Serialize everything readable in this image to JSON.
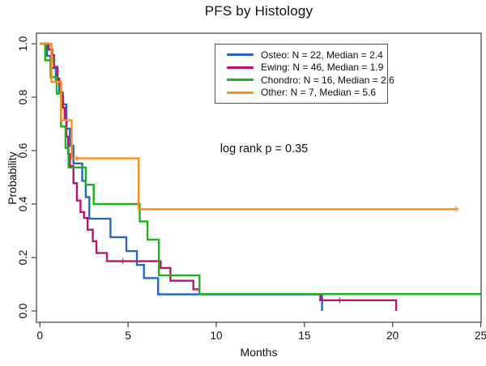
{
  "title": "PFS by Histology",
  "annotation": "log rank p = 0.35",
  "axes": {
    "x": {
      "label": "Months",
      "tick_labels": [
        "0",
        "5",
        "10",
        "15",
        "20",
        "25"
      ],
      "tick_values": [
        0,
        5,
        10,
        15,
        20,
        25
      ],
      "range": [
        0,
        25
      ]
    },
    "y": {
      "label": "Probability",
      "tick_labels": [
        "0.0",
        "0.2",
        "0.4",
        "0.6",
        "0.8",
        "1.0"
      ],
      "tick_values": [
        0,
        0.2,
        0.4,
        0.6,
        0.8,
        1.0
      ],
      "range": [
        0,
        1
      ]
    }
  },
  "legend": {
    "entries": [
      {
        "label": "Osteo: N = 22, Median = 2.4",
        "color": "#2569bf"
      },
      {
        "label": "Ewing: N = 46, Median = 1.9",
        "color": "#c1126b"
      },
      {
        "label": "Chondro: N = 16, Median = 2.6",
        "color": "#1ab51a"
      },
      {
        "label": "Other: N = 7, Median = 5.6",
        "color": "#ff8c1a"
      }
    ]
  },
  "chart_data": {
    "type": "line",
    "subtype": "kaplan-meier-step",
    "title": "PFS by Histology",
    "xlabel": "Months",
    "ylabel": "Probability",
    "xlim": [
      0,
      25
    ],
    "ylim": [
      0,
      1
    ],
    "grid": false,
    "legend_position": "top-right-inside",
    "annotation": "log rank p = 0.35",
    "series": [
      {
        "name": "Osteo",
        "n": 22,
        "median": 2.4,
        "color": "#2569bf",
        "points": [
          [
            0,
            1.0
          ],
          [
            0.4,
            0.955
          ],
          [
            0.6,
            0.909
          ],
          [
            0.9,
            0.864
          ],
          [
            1.1,
            0.818
          ],
          [
            1.3,
            0.773
          ],
          [
            1.5,
            0.682
          ],
          [
            1.7,
            0.618
          ],
          [
            1.9,
            0.552
          ],
          [
            2.4,
            0.487
          ],
          [
            2.6,
            0.426
          ],
          [
            2.8,
            0.345
          ],
          [
            4.0,
            0.276
          ],
          [
            4.9,
            0.224
          ],
          [
            5.5,
            0.172
          ],
          [
            5.9,
            0.123
          ],
          [
            6.7,
            0.062
          ],
          [
            16.0,
            0.0
          ]
        ],
        "end_x": null,
        "censors": []
      },
      {
        "name": "Ewing",
        "n": 46,
        "median": 1.9,
        "color": "#c1126b",
        "points": [
          [
            0,
            1.0
          ],
          [
            0.5,
            0.978
          ],
          [
            0.7,
            0.957
          ],
          [
            0.8,
            0.913
          ],
          [
            1.0,
            0.87
          ],
          [
            1.1,
            0.848
          ],
          [
            1.2,
            0.804
          ],
          [
            1.3,
            0.761
          ],
          [
            1.4,
            0.717
          ],
          [
            1.5,
            0.652
          ],
          [
            1.6,
            0.587
          ],
          [
            1.7,
            0.543
          ],
          [
            1.9,
            0.478
          ],
          [
            2.1,
            0.413
          ],
          [
            2.3,
            0.37
          ],
          [
            2.5,
            0.348
          ],
          [
            2.7,
            0.304
          ],
          [
            3.0,
            0.261
          ],
          [
            3.2,
            0.217
          ],
          [
            3.8,
            0.186
          ],
          [
            6.85,
            0.161
          ],
          [
            7.4,
            0.113
          ],
          [
            8.7,
            0.081
          ],
          [
            9.05,
            0.063
          ],
          [
            15.9,
            0.04
          ],
          [
            20.2,
            0.0
          ]
        ],
        "end_x": null,
        "censors": [
          [
            4.7,
            0.186
          ],
          [
            17.0,
            0.04
          ]
        ]
      },
      {
        "name": "Chondro",
        "n": 16,
        "median": 2.6,
        "color": "#1ab51a",
        "points": [
          [
            0,
            1.0
          ],
          [
            0.3,
            0.938
          ],
          [
            0.6,
            0.875
          ],
          [
            0.95,
            0.813
          ],
          [
            1.2,
            0.69
          ],
          [
            1.45,
            0.61
          ],
          [
            1.62,
            0.537
          ],
          [
            2.6,
            0.472
          ],
          [
            3.05,
            0.4
          ],
          [
            5.66,
            0.335
          ],
          [
            6.1,
            0.267
          ],
          [
            6.75,
            0.133
          ],
          [
            9.05,
            0.063
          ]
        ],
        "end_x": 25.0,
        "censors": [
          [
            0.75,
            0.938
          ]
        ]
      },
      {
        "name": "Other",
        "n": 7,
        "median": 5.6,
        "color": "#ff8c1a",
        "points": [
          [
            0,
            1.0
          ],
          [
            0.65,
            0.857
          ],
          [
            1.2,
            0.714
          ],
          [
            1.8,
            0.571
          ],
          [
            5.6,
            0.381
          ]
        ],
        "end_x": 23.7,
        "censors": [
          [
            2.1,
            0.571
          ],
          [
            23.6,
            0.381
          ]
        ]
      }
    ]
  }
}
